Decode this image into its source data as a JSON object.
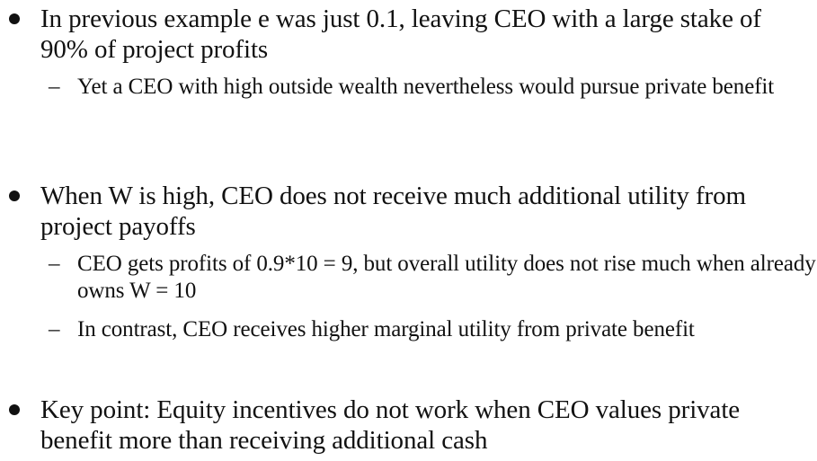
{
  "bullets": [
    {
      "text": "In previous example e was just 0.1, leaving CEO with a large stake of 90% of project profits",
      "subs": [
        {
          "dash": "–",
          "text": "Yet a CEO with high outside wealth nevertheless would pursue private benefit"
        }
      ]
    },
    {
      "text": "When W is high, CEO does not receive much additional utility from project payoffs",
      "subs": [
        {
          "dash": "–",
          "text": "CEO gets profits of 0.9*10 = 9, but overall utility does not rise much when already owns W = 10"
        },
        {
          "dash": "–",
          "text": "In contrast, CEO receives higher marginal utility from private benefit"
        }
      ]
    },
    {
      "text": "Key point: Equity incentives do not work when CEO values private benefit more than receiving additional cash",
      "subs": []
    }
  ]
}
